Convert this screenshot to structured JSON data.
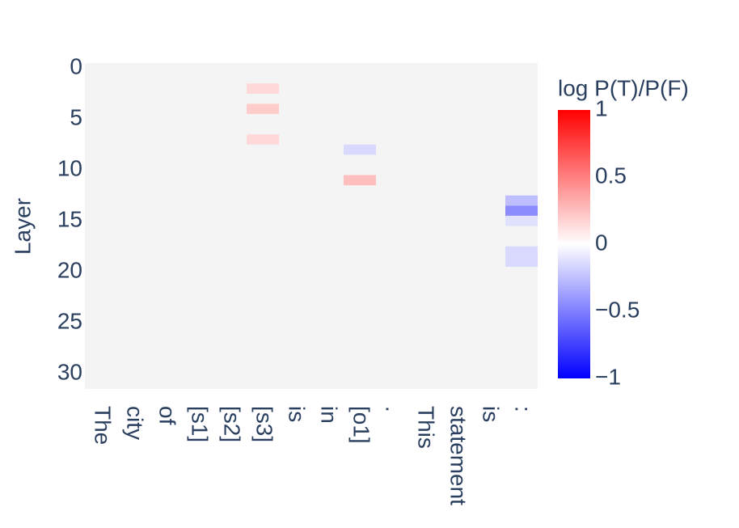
{
  "chart_data": {
    "type": "heatmap",
    "y_title": "Layer",
    "colorbar_title": "log P(T)/P(F)",
    "categories": [
      "The",
      "city",
      "of",
      "[s1]",
      "[s2]",
      "[s3]",
      "is",
      "in",
      "[o1]",
      ".",
      "This",
      "statement",
      "is",
      ":"
    ],
    "ylim": [
      -0.5,
      31.5
    ],
    "yticks": [
      0,
      5,
      10,
      15,
      20,
      25,
      30
    ],
    "zlim": [
      -1,
      1
    ],
    "colorbar_ticks": [
      {
        "value": 1,
        "label": "1"
      },
      {
        "value": 0.5,
        "label": "0.5"
      },
      {
        "value": 0,
        "label": "0"
      },
      {
        "value": -0.5,
        "label": "−0.5"
      },
      {
        "value": -1,
        "label": "−1"
      }
    ],
    "colorscale": [
      [
        0,
        "#0000ff"
      ],
      [
        0.5,
        "#ffffff"
      ],
      [
        1,
        "#ff0000"
      ]
    ],
    "background": "#f4f4f4",
    "z": [
      [
        null,
        null,
        null,
        null,
        null,
        null,
        null,
        null,
        null,
        null,
        null,
        null,
        null,
        null
      ],
      [
        null,
        null,
        null,
        null,
        null,
        null,
        null,
        null,
        null,
        null,
        null,
        null,
        null,
        null
      ],
      [
        null,
        null,
        null,
        null,
        null,
        0.15,
        null,
        null,
        null,
        null,
        null,
        null,
        null,
        null
      ],
      [
        null,
        null,
        null,
        null,
        null,
        null,
        null,
        null,
        null,
        null,
        null,
        null,
        null,
        null
      ],
      [
        null,
        null,
        null,
        null,
        null,
        0.2,
        null,
        null,
        null,
        null,
        null,
        null,
        null,
        null
      ],
      [
        null,
        null,
        null,
        null,
        null,
        null,
        null,
        null,
        null,
        null,
        null,
        null,
        null,
        null
      ],
      [
        null,
        null,
        null,
        null,
        null,
        null,
        null,
        null,
        null,
        null,
        null,
        null,
        null,
        null
      ],
      [
        null,
        null,
        null,
        null,
        null,
        0.15,
        null,
        null,
        null,
        null,
        null,
        null,
        null,
        null
      ],
      [
        null,
        null,
        null,
        null,
        null,
        null,
        null,
        null,
        -0.15,
        null,
        null,
        null,
        null,
        null
      ],
      [
        null,
        null,
        null,
        null,
        null,
        null,
        null,
        null,
        null,
        null,
        null,
        null,
        null,
        null
      ],
      [
        null,
        null,
        null,
        null,
        null,
        null,
        null,
        null,
        null,
        null,
        null,
        null,
        null,
        null
      ],
      [
        null,
        null,
        null,
        null,
        null,
        null,
        null,
        null,
        0.25,
        null,
        null,
        null,
        null,
        null
      ],
      [
        null,
        null,
        null,
        null,
        null,
        null,
        null,
        null,
        null,
        null,
        null,
        null,
        null,
        null
      ],
      [
        null,
        null,
        null,
        null,
        null,
        null,
        null,
        null,
        null,
        null,
        null,
        null,
        null,
        -0.25
      ],
      [
        null,
        null,
        null,
        null,
        null,
        null,
        null,
        null,
        null,
        null,
        null,
        null,
        null,
        -0.45
      ],
      [
        null,
        null,
        null,
        null,
        null,
        null,
        null,
        null,
        null,
        null,
        null,
        null,
        null,
        -0.12
      ],
      [
        null,
        null,
        null,
        null,
        null,
        null,
        null,
        null,
        null,
        null,
        null,
        null,
        null,
        null
      ],
      [
        null,
        null,
        null,
        null,
        null,
        null,
        null,
        null,
        null,
        null,
        null,
        null,
        null,
        null
      ],
      [
        null,
        null,
        null,
        null,
        null,
        null,
        null,
        null,
        null,
        null,
        null,
        null,
        null,
        -0.15
      ],
      [
        null,
        null,
        null,
        null,
        null,
        null,
        null,
        null,
        null,
        null,
        null,
        null,
        null,
        -0.15
      ],
      [
        null,
        null,
        null,
        null,
        null,
        null,
        null,
        null,
        null,
        null,
        null,
        null,
        null,
        null
      ],
      [
        null,
        null,
        null,
        null,
        null,
        null,
        null,
        null,
        null,
        null,
        null,
        null,
        null,
        null
      ],
      [
        null,
        null,
        null,
        null,
        null,
        null,
        null,
        null,
        null,
        null,
        null,
        null,
        null,
        null
      ],
      [
        null,
        null,
        null,
        null,
        null,
        null,
        null,
        null,
        null,
        null,
        null,
        null,
        null,
        null
      ],
      [
        null,
        null,
        null,
        null,
        null,
        null,
        null,
        null,
        null,
        null,
        null,
        null,
        null,
        null
      ],
      [
        null,
        null,
        null,
        null,
        null,
        null,
        null,
        null,
        null,
        null,
        null,
        null,
        null,
        null
      ],
      [
        null,
        null,
        null,
        null,
        null,
        null,
        null,
        null,
        null,
        null,
        null,
        null,
        null,
        null
      ],
      [
        null,
        null,
        null,
        null,
        null,
        null,
        null,
        null,
        null,
        null,
        null,
        null,
        null,
        null
      ],
      [
        null,
        null,
        null,
        null,
        null,
        null,
        null,
        null,
        null,
        null,
        null,
        null,
        null,
        null
      ],
      [
        null,
        null,
        null,
        null,
        null,
        null,
        null,
        null,
        null,
        null,
        null,
        null,
        null,
        null
      ],
      [
        null,
        null,
        null,
        null,
        null,
        null,
        null,
        null,
        null,
        null,
        null,
        null,
        null,
        null
      ],
      [
        null,
        null,
        null,
        null,
        null,
        null,
        null,
        null,
        null,
        null,
        null,
        null,
        null,
        null
      ]
    ]
  }
}
